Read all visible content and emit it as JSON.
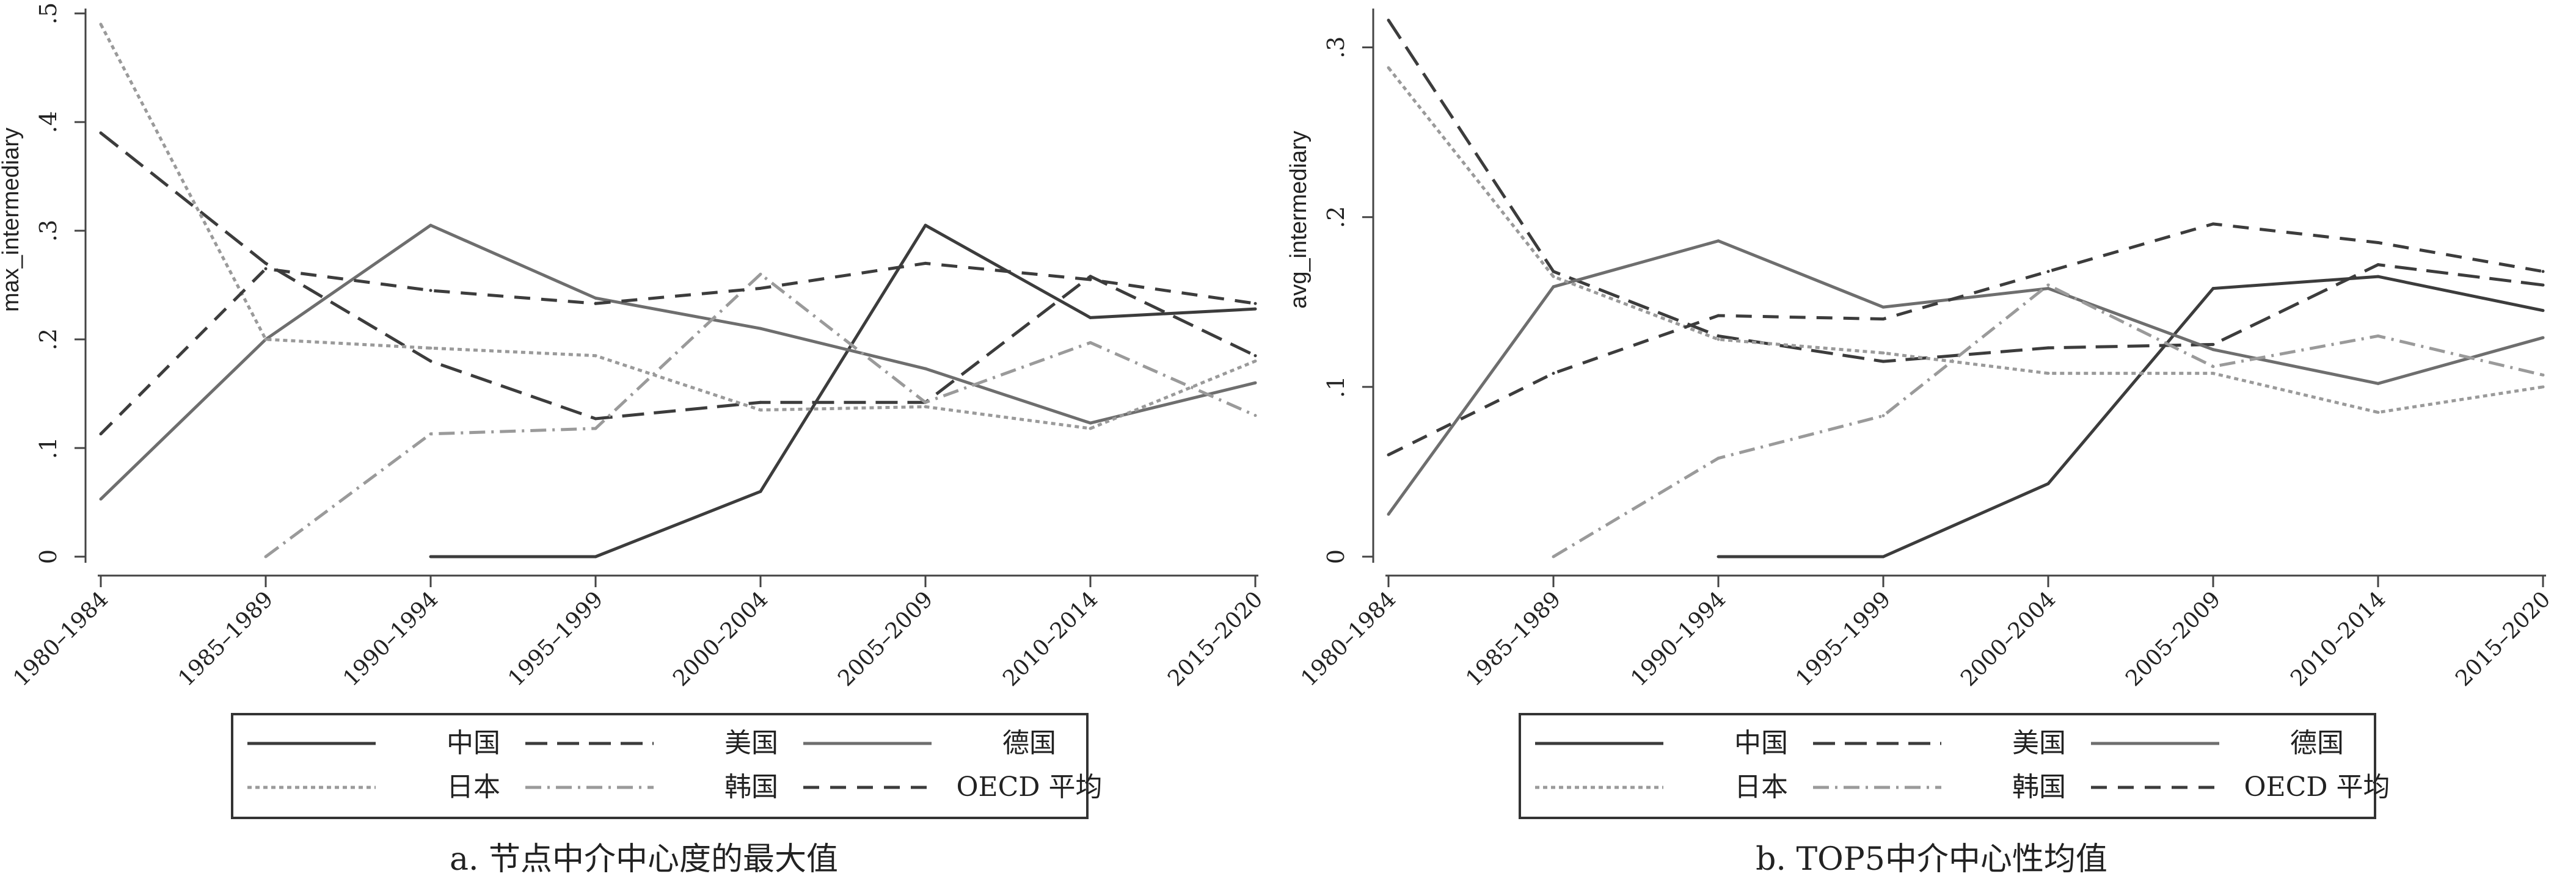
{
  "chart_data": [
    {
      "type": "line",
      "title": "",
      "caption": "a. 节点中介中心度的最大值",
      "xlabel": "",
      "ylabel": "max_intermediary",
      "ylim": [
        0,
        0.5
      ],
      "yticks": [
        0,
        0.1,
        0.2,
        0.3,
        0.4,
        0.5
      ],
      "ytick_labels": [
        "0",
        ".1",
        ".2",
        ".3",
        ".4",
        ".5"
      ],
      "grid": false,
      "legend_position": "bottom",
      "categories": [
        "1980–1984",
        "1985–1989",
        "1990–1994",
        "1995–1999",
        "2000–2004",
        "2005–2009",
        "2010–2014",
        "2015–2020"
      ],
      "series": [
        {
          "name": "中国",
          "color": "#3c3c3c",
          "dash": "solid",
          "values": [
            null,
            null,
            0.0,
            0.0,
            0.06,
            0.305,
            0.22,
            0.228
          ]
        },
        {
          "name": "美国",
          "color": "#3c3c3c",
          "dash": "longdash",
          "values": [
            0.39,
            0.27,
            0.18,
            0.127,
            0.142,
            0.142,
            0.258,
            0.185
          ]
        },
        {
          "name": "德国",
          "color": "#6e6e6e",
          "dash": "solid",
          "values": [
            0.053,
            0.2,
            0.305,
            0.238,
            0.21,
            0.173,
            0.123,
            0.16
          ]
        },
        {
          "name": "日本",
          "color": "#9a9a9a",
          "dash": "shortdash",
          "values": [
            0.49,
            0.2,
            0.192,
            0.185,
            0.135,
            0.138,
            0.118,
            0.18
          ]
        },
        {
          "name": "韩国",
          "color": "#9a9a9a",
          "dash": "dashdot",
          "values": [
            null,
            0.0,
            0.113,
            0.118,
            0.26,
            0.142,
            0.197,
            0.13
          ]
        },
        {
          "name": "OECD 平均",
          "color": "#3c3c3c",
          "dash": "mediumdash",
          "values": [
            0.113,
            0.265,
            0.245,
            0.233,
            0.247,
            0.27,
            0.255,
            0.233
          ]
        }
      ]
    },
    {
      "type": "line",
      "title": "",
      "caption": "b. TOP5中介中心性均值",
      "xlabel": "",
      "ylabel": "avg_intermediary",
      "ylim": [
        0,
        0.32
      ],
      "yticks": [
        0,
        0.1,
        0.2,
        0.3
      ],
      "ytick_labels": [
        "0",
        ".1",
        ".2",
        ".3"
      ],
      "grid": false,
      "legend_position": "bottom",
      "categories": [
        "1980–1984",
        "1985–1989",
        "1990–1994",
        "1995–1999",
        "2000–2004",
        "2005–2009",
        "2010–2014",
        "2015–2020"
      ],
      "series": [
        {
          "name": "中国",
          "color": "#3c3c3c",
          "dash": "solid",
          "values": [
            null,
            null,
            0.0,
            0.0,
            0.043,
            0.158,
            0.165,
            0.145
          ]
        },
        {
          "name": "美国",
          "color": "#3c3c3c",
          "dash": "longdash",
          "values": [
            0.316,
            0.168,
            0.13,
            0.115,
            0.123,
            0.125,
            0.172,
            0.16
          ]
        },
        {
          "name": "德国",
          "color": "#6e6e6e",
          "dash": "solid",
          "values": [
            0.025,
            0.159,
            0.186,
            0.147,
            0.158,
            0.122,
            0.102,
            0.129
          ]
        },
        {
          "name": "日本",
          "color": "#9a9a9a",
          "dash": "shortdash",
          "values": [
            0.288,
            0.165,
            0.128,
            0.12,
            0.108,
            0.108,
            0.085,
            0.1
          ]
        },
        {
          "name": "韩国",
          "color": "#9a9a9a",
          "dash": "dashdot",
          "values": [
            null,
            0.0,
            0.058,
            0.083,
            0.16,
            0.112,
            0.13,
            0.107
          ]
        },
        {
          "name": "OECD 平均",
          "color": "#3c3c3c",
          "dash": "mediumdash",
          "values": [
            0.06,
            0.108,
            0.142,
            0.14,
            0.168,
            0.196,
            0.185,
            0.168
          ]
        }
      ]
    }
  ]
}
